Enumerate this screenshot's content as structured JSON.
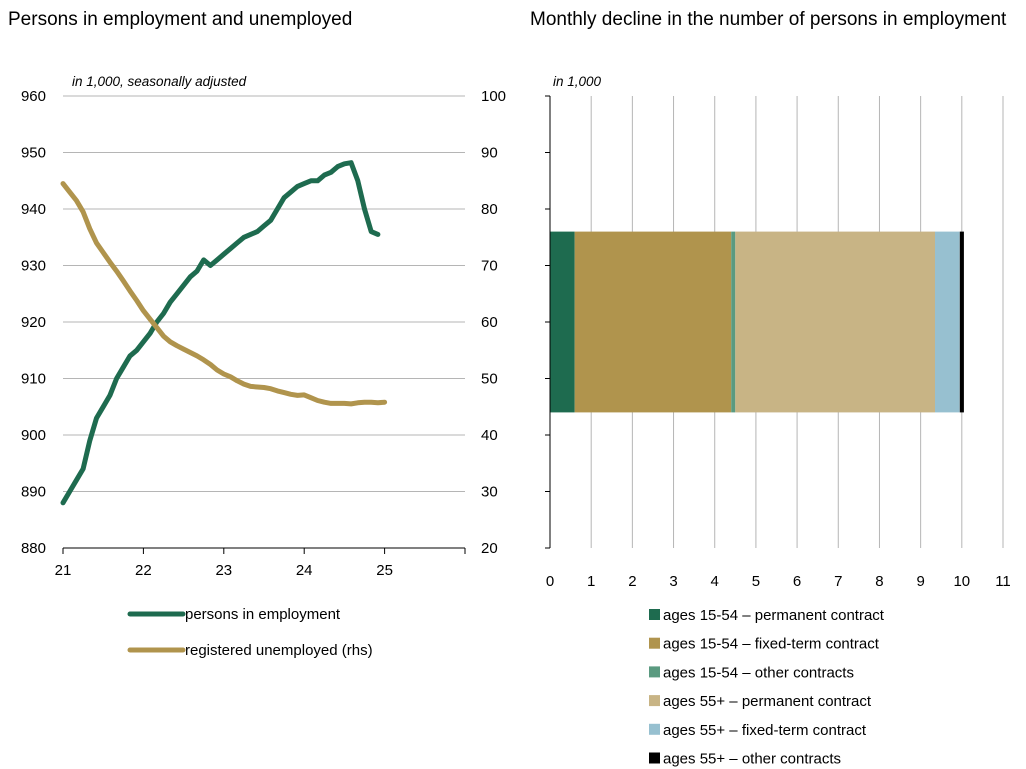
{
  "left_title": "Persons in employment and unemployed",
  "right_title": "Monthly decline in the number of persons in employment",
  "chart_data": [
    {
      "type": "line",
      "title": "Persons in employment and unemployed",
      "unit_note": "in 1,000, seasonally adjusted",
      "x_ticks": [
        "21",
        "22",
        "23",
        "24",
        "25"
      ],
      "xlim": [
        21,
        26
      ],
      "ylim_left": [
        880,
        960
      ],
      "ylim_right": [
        20,
        100
      ],
      "y_ticks_left": [
        "880",
        "890",
        "900",
        "910",
        "920",
        "930",
        "940",
        "950",
        "960"
      ],
      "y_ticks_right": [
        "20",
        "30",
        "40",
        "50",
        "60",
        "70",
        "80",
        "90",
        "100"
      ],
      "grid": true,
      "legend_position": "bottom",
      "series": [
        {
          "name": "persons in employment",
          "axis": "left",
          "color": "#1e6b4f",
          "x": [
            21.0,
            21.083,
            21.167,
            21.25,
            21.333,
            21.417,
            21.5,
            21.583,
            21.667,
            21.75,
            21.833,
            21.917,
            22.0,
            22.083,
            22.167,
            22.25,
            22.333,
            22.417,
            22.5,
            22.583,
            22.667,
            22.75,
            22.833,
            22.917,
            23.0,
            23.083,
            23.167,
            23.25,
            23.333,
            23.417,
            23.5,
            23.583,
            23.667,
            23.75,
            23.833,
            23.917,
            24.0,
            24.083,
            24.167,
            24.25,
            24.333,
            24.417,
            24.5,
            24.583,
            24.667,
            24.75,
            24.833,
            24.917
          ],
          "y": [
            888,
            890,
            892,
            894,
            899,
            903,
            905,
            907,
            910,
            912,
            914,
            915,
            916.5,
            918,
            920,
            921.5,
            923.5,
            925,
            926.5,
            928,
            929,
            931,
            930,
            931,
            932,
            933,
            934,
            935,
            935.5,
            936,
            937,
            938,
            940,
            942,
            943,
            944,
            944.5,
            945,
            945,
            946,
            946.5,
            947.5,
            948,
            948.2,
            945,
            940,
            936,
            935.5
          ],
          "y_note": "left axis"
        },
        {
          "name": "registered unemployed (rhs)",
          "axis": "right",
          "color": "#b0944d",
          "x": [
            21.0,
            21.083,
            21.167,
            21.25,
            21.333,
            21.417,
            21.5,
            21.583,
            21.667,
            21.75,
            21.833,
            21.917,
            22.0,
            22.083,
            22.167,
            22.25,
            22.333,
            22.417,
            22.5,
            22.583,
            22.667,
            22.75,
            22.833,
            22.917,
            23.0,
            23.083,
            23.167,
            23.25,
            23.333,
            23.417,
            23.5,
            23.583,
            23.667,
            23.75,
            23.833,
            23.917,
            24.0,
            24.083,
            24.167,
            24.25,
            24.333,
            24.417,
            24.5,
            24.583,
            24.667,
            24.75,
            24.833,
            24.917,
            25.0
          ],
          "y": [
            84.5,
            83,
            81.5,
            79.5,
            76.5,
            74,
            72.3,
            70.6,
            69,
            67.3,
            65.5,
            63.8,
            62,
            60.5,
            59,
            57.5,
            56.5,
            55.8,
            55.2,
            54.6,
            54,
            53.3,
            52.5,
            51.5,
            50.8,
            50.3,
            49.6,
            49,
            48.6,
            48.5,
            48.4,
            48.2,
            47.8,
            47.5,
            47.2,
            47.0,
            47.1,
            46.6,
            46.1,
            45.8,
            45.6,
            45.6,
            45.6,
            45.5,
            45.7,
            45.8,
            45.8,
            45.7,
            45.8
          ]
        }
      ]
    },
    {
      "type": "bar",
      "orientation": "horizontal",
      "stacked": true,
      "title": "Monthly decline in the number of persons in employment",
      "unit_note": "in 1,000",
      "xlim": [
        0,
        11
      ],
      "x_ticks": [
        "0",
        "1",
        "2",
        "3",
        "4",
        "5",
        "6",
        "7",
        "8",
        "9",
        "10",
        "11"
      ],
      "ylim": [
        20,
        100
      ],
      "y_ticks": [
        "20",
        "30",
        "40",
        "50",
        "60",
        "70",
        "80",
        "90",
        "100"
      ],
      "bar_span": [
        44,
        76
      ],
      "grid": true,
      "legend_position": "bottom",
      "series": [
        {
          "name": "ages 15-54 – permanent contract",
          "value": 0.6,
          "color": "#1e6b4f"
        },
        {
          "name": "ages 15-54 – fixed-term contract",
          "value": 3.8,
          "color": "#b0944d"
        },
        {
          "name": "ages 15-54 – other contracts",
          "value": 0.1,
          "color": "#5a9a80"
        },
        {
          "name": "ages 55+ – permanent contract",
          "value": 4.85,
          "color": "#c8b485"
        },
        {
          "name": "ages 55+ – fixed-term contract",
          "value": 0.6,
          "color": "#97c0d0"
        },
        {
          "name": "ages 55+ – other contracts",
          "value": 0.1,
          "color": "#000000"
        }
      ]
    }
  ]
}
